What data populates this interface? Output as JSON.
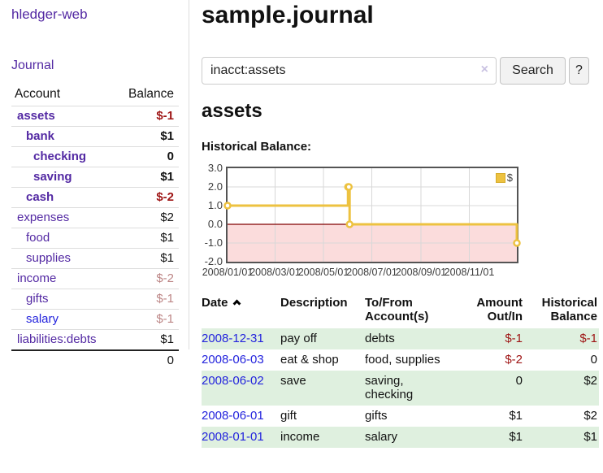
{
  "app": {
    "title": "hledger-web"
  },
  "sidebar": {
    "journal_link": "Journal",
    "table": {
      "headers": {
        "account": "Account",
        "balance": "Balance"
      },
      "rows": [
        {
          "account": "assets",
          "balance": "$-1",
          "depth": 1,
          "bold": true,
          "link": "purple",
          "bal": "negstrong"
        },
        {
          "account": "bank",
          "balance": "$1",
          "depth": 2,
          "bold": true,
          "link": "purple",
          "bal": "pos"
        },
        {
          "account": "checking",
          "balance": "0",
          "depth": 3,
          "bold": true,
          "link": "purple",
          "bal": "pos"
        },
        {
          "account": "saving",
          "balance": "$1",
          "depth": 3,
          "bold": true,
          "link": "purple",
          "bal": "pos"
        },
        {
          "account": "cash",
          "balance": "$-2",
          "depth": 2,
          "bold": true,
          "link": "purple",
          "bal": "negstrong"
        },
        {
          "account": "expenses",
          "balance": "$2",
          "depth": 1,
          "bold": false,
          "link": "purple",
          "bal": "pos"
        },
        {
          "account": "food",
          "balance": "$1",
          "depth": 2,
          "bold": false,
          "link": "purple",
          "bal": "pos"
        },
        {
          "account": "supplies",
          "balance": "$1",
          "depth": 2,
          "bold": false,
          "link": "purple",
          "bal": "pos"
        },
        {
          "account": "income",
          "balance": "$-2",
          "depth": 1,
          "bold": false,
          "link": "purple",
          "bal": "negmuted"
        },
        {
          "account": "gifts",
          "balance": "$-1",
          "depth": 2,
          "bold": false,
          "link": "purple",
          "bal": "negmuted"
        },
        {
          "account": "salary",
          "balance": "$-1",
          "depth": 2,
          "bold": false,
          "link": "blue",
          "bal": "negmuted"
        },
        {
          "account": "liabilities:debts",
          "balance": "$1",
          "depth": 1,
          "bold": false,
          "link": "purple",
          "bal": "pos"
        }
      ],
      "total": "0"
    }
  },
  "main": {
    "title": "sample.journal",
    "search": {
      "value": "inacct:assets",
      "clear_icon": "×",
      "button_label": "Search",
      "help_label": "?"
    },
    "account_heading": "assets",
    "chart_label": "Historical Balance:"
  },
  "chart_data": {
    "type": "line",
    "step": true,
    "title": "Historical Balance:",
    "series": [
      {
        "name": "$",
        "color": "#EDC240",
        "points": [
          [
            "2008-01-01",
            1
          ],
          [
            "2008-06-01",
            2
          ],
          [
            "2008-06-02",
            2
          ],
          [
            "2008-06-03",
            0
          ],
          [
            "2008-12-31",
            -1
          ]
        ]
      }
    ],
    "x_ticks": [
      "2008/01/01",
      "2008/03/01",
      "2008/05/01",
      "2008/07/01",
      "2008/09/01",
      "2008/11/01"
    ],
    "y_ticks": [
      "3.0",
      "2.0",
      "1.0",
      "0.0",
      "-1.0",
      "-2.0"
    ],
    "ylim": [
      -2,
      3
    ],
    "grid": true,
    "legend_position": "top-right",
    "zero_line_color": "#800000",
    "negative_region_color": "#fbdcdc",
    "grid_color": "#d8d8d8",
    "border_color": "#545454"
  },
  "register": {
    "headers": {
      "date": "Date",
      "description": "Description",
      "accounts": "To/From Account(s)",
      "amount": "Amount Out/In",
      "balance": "Historical Balance"
    },
    "sort_icon": "sort-ascending",
    "rows": [
      {
        "date": "2008-12-31",
        "description": "pay off",
        "accounts": "debts",
        "amount": "$-1",
        "amount_class": "negstrong",
        "balance": "$-1",
        "balance_class": "negstrong",
        "green": true
      },
      {
        "date": "2008-06-03",
        "description": "eat & shop",
        "accounts": "food, supplies",
        "amount": "$-2",
        "amount_class": "negstrong",
        "balance": "0",
        "balance_class": "pos",
        "green": false
      },
      {
        "date": "2008-06-02",
        "description": "save",
        "accounts": "saving, checking",
        "amount": "0",
        "amount_class": "pos",
        "balance": "$2",
        "balance_class": "pos",
        "green": true
      },
      {
        "date": "2008-06-01",
        "description": "gift",
        "accounts": "gifts",
        "amount": "$1",
        "amount_class": "pos",
        "balance": "$2",
        "balance_class": "pos",
        "green": false
      },
      {
        "date": "2008-01-01",
        "description": "income",
        "accounts": "salary",
        "amount": "$1",
        "amount_class": "pos",
        "balance": "$1",
        "balance_class": "pos",
        "green": true
      }
    ]
  },
  "colors": {
    "link_purple": "#5329a3",
    "link_blue": "#2323dd",
    "negative_strong": "#9e1414",
    "negative_muted": "#bc8585",
    "row_green": "#dff0df",
    "series_yellow": "#EDC240"
  }
}
